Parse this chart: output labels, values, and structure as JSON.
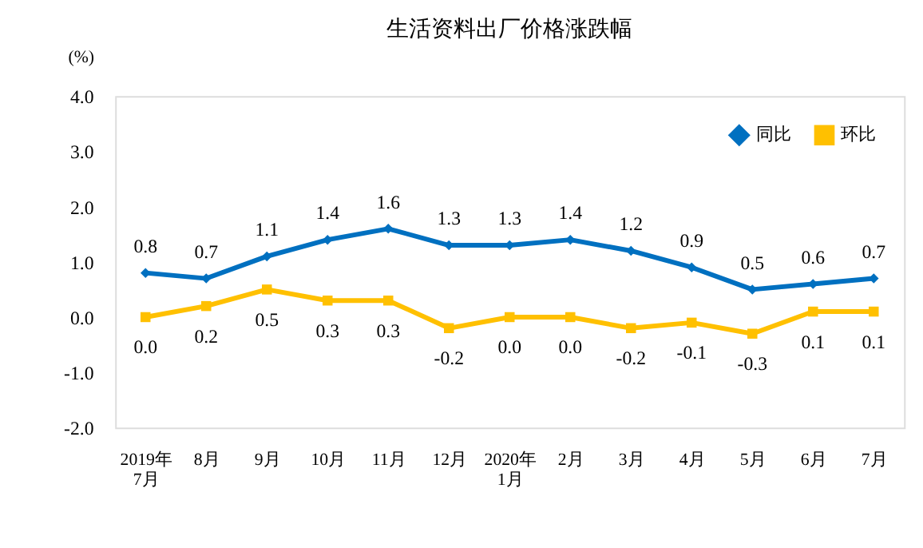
{
  "chart_data": {
    "type": "line",
    "title": "生活资料出厂价格涨跌幅",
    "ylabel": "(%)",
    "categories": [
      "2019年\n7月",
      "8月",
      "9月",
      "10月",
      "11月",
      "12月",
      "2020年\n1月",
      "2月",
      "3月",
      "4月",
      "5月",
      "6月",
      "7月"
    ],
    "series": [
      {
        "name": "同比",
        "color": "#0070c0",
        "marker": "diamond",
        "values": [
          0.8,
          0.7,
          1.1,
          1.4,
          1.6,
          1.3,
          1.3,
          1.4,
          1.2,
          0.9,
          0.5,
          0.6,
          0.7
        ],
        "value_labels": [
          "0.8",
          "0.7",
          "1.1",
          "1.4",
          "1.6",
          "1.3",
          "1.3",
          "1.4",
          "1.2",
          "0.9",
          "0.5",
          "0.6",
          "0.7"
        ]
      },
      {
        "name": "环比",
        "color": "#ffc000",
        "marker": "square",
        "values": [
          0.0,
          0.2,
          0.5,
          0.3,
          0.3,
          -0.2,
          0.0,
          0.0,
          -0.2,
          -0.1,
          -0.3,
          0.1,
          0.1
        ],
        "value_labels": [
          "0.0",
          "0.2",
          "0.5",
          "0.3",
          "0.3",
          "-0.2",
          "0.0",
          "0.0",
          "-0.2",
          "-0.1",
          "-0.3",
          "0.1",
          "0.1"
        ]
      }
    ],
    "ylim": [
      -2,
      4
    ],
    "yticks": [
      {
        "value": -2,
        "label": "-2.0"
      },
      {
        "value": -1,
        "label": "-1.0"
      },
      {
        "value": 0,
        "label": "0.0"
      },
      {
        "value": 1,
        "label": "1.0"
      },
      {
        "value": 2,
        "label": "2.0"
      },
      {
        "value": 3,
        "label": "3.0"
      },
      {
        "value": 4,
        "label": "4.0"
      }
    ],
    "grid": false,
    "legend": "top right",
    "line_style": "solid"
  }
}
